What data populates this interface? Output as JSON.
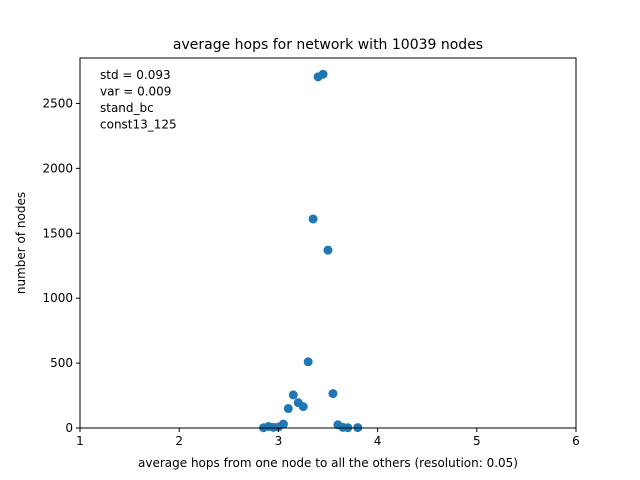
{
  "chart_data": {
    "type": "scatter",
    "title": "average hops for network with 10039 nodes",
    "xlabel": "average hops from one node to all  the others (resolution: 0.05)",
    "ylabel": "number of nodes",
    "xlim": [
      1,
      6
    ],
    "ylim": [
      0,
      2850
    ],
    "xticks": [
      "1",
      "2",
      "3",
      "4",
      "5",
      "6"
    ],
    "yticks": [
      "0",
      "500",
      "1000",
      "1500",
      "2000",
      "2500"
    ],
    "grid": false,
    "marker_color": "#1f77b4",
    "annotations": [
      "std = 0.093",
      "var = 0.009",
      "stand_bc",
      "const13_125"
    ],
    "points": [
      {
        "x": 2.85,
        "y": 2
      },
      {
        "x": 2.9,
        "y": 12
      },
      {
        "x": 2.95,
        "y": 5
      },
      {
        "x": 3.0,
        "y": 8
      },
      {
        "x": 3.05,
        "y": 30
      },
      {
        "x": 3.1,
        "y": 150
      },
      {
        "x": 3.15,
        "y": 255
      },
      {
        "x": 3.2,
        "y": 195
      },
      {
        "x": 3.25,
        "y": 165
      },
      {
        "x": 3.3,
        "y": 510
      },
      {
        "x": 3.35,
        "y": 1610
      },
      {
        "x": 3.4,
        "y": 2705
      },
      {
        "x": 3.45,
        "y": 2725
      },
      {
        "x": 3.5,
        "y": 1370
      },
      {
        "x": 3.55,
        "y": 265
      },
      {
        "x": 3.6,
        "y": 25
      },
      {
        "x": 3.65,
        "y": 5
      },
      {
        "x": 3.7,
        "y": 2
      },
      {
        "x": 3.8,
        "y": 3
      }
    ]
  }
}
